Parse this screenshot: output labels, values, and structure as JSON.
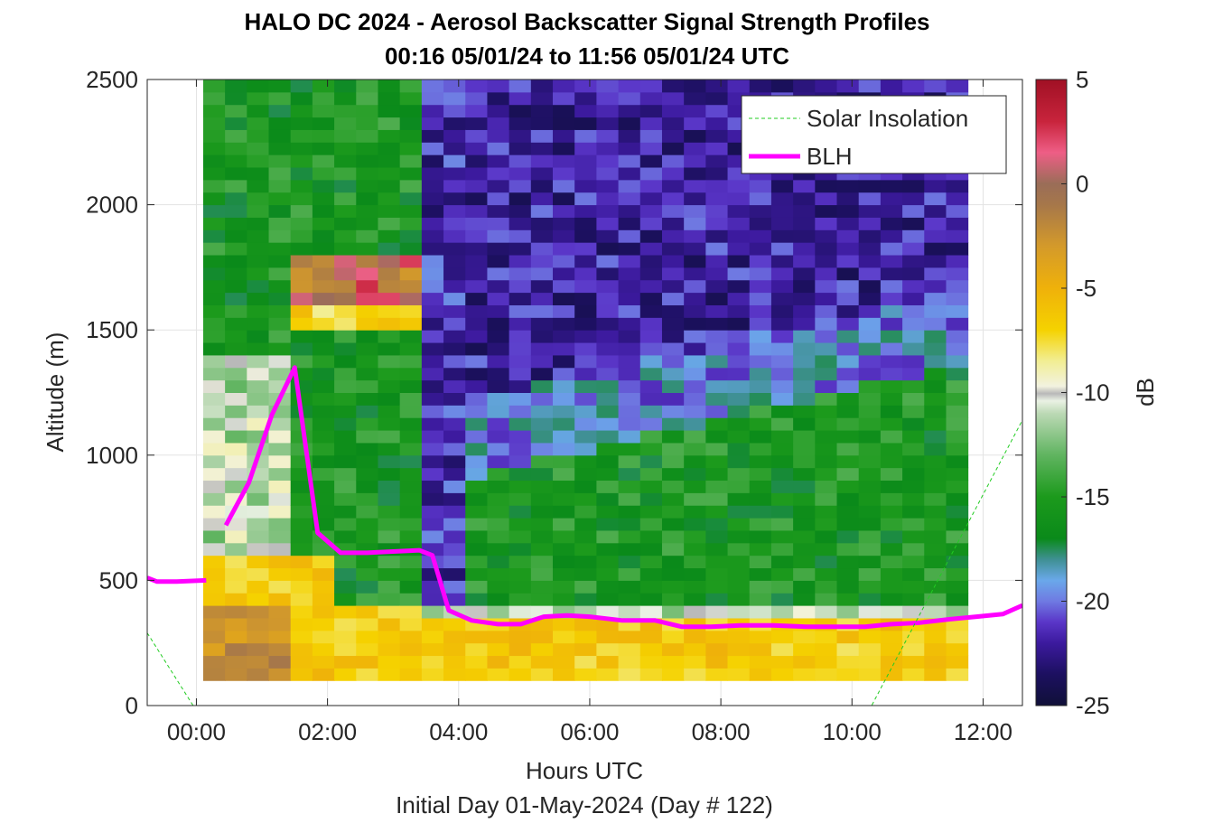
{
  "chart_data": {
    "type": "heatmap",
    "title": "HALO DC 2024 - Aerosol Backscatter Signal Strength Profiles",
    "subtitle": "00:16 05/01/24 to 11:56 05/01/24  UTC",
    "xlabel": "Hours UTC",
    "xlabel2": "Initial Day 01-May-2024 (Day # 122)",
    "ylabel": "Altitude (m)",
    "xlim": [
      -0.75,
      12.6
    ],
    "ylim": [
      0,
      2500
    ],
    "x_ticks": [
      0,
      2,
      4,
      6,
      8,
      10,
      12
    ],
    "x_tick_labels": [
      "00:00",
      "02:00",
      "04:00",
      "06:00",
      "08:00",
      "10:00",
      "12:00"
    ],
    "y_ticks": [
      0,
      500,
      1000,
      1500,
      2000,
      2500
    ],
    "y_tick_labels": [
      "0",
      "500",
      "1000",
      "1500",
      "2000",
      "2500"
    ],
    "grid": true,
    "colorbar": {
      "label": "dB",
      "range": [
        -25,
        5
      ],
      "ticks": [
        -25,
        -20,
        -15,
        -10,
        -5,
        0,
        5
      ],
      "tick_labels": [
        "-25",
        "-20",
        "-15",
        "-10",
        "-5",
        "0",
        "5"
      ]
    },
    "heatmap": {
      "x_start": 0.27,
      "x_step": 0.3333,
      "columns": 35,
      "y_start": 100,
      "y_top": 2500,
      "row_step": 50
    },
    "legend": {
      "placement": "top-right",
      "entries": [
        {
          "label": "Solar Insolation",
          "color": "#22cc22",
          "style": "dashed"
        },
        {
          "label": "BLH",
          "color": "#ff00ff",
          "style": "solid"
        }
      ]
    },
    "series": [
      {
        "name": "BLH",
        "color": "#ff00ff",
        "segments": [
          {
            "x": [
              -0.75,
              -0.6,
              -0.3,
              0.15
            ],
            "y": [
              510,
              495,
              495,
              500
            ]
          },
          {
            "x": [
              0.45,
              0.8,
              1.15,
              1.5,
              1.85,
              2.2,
              2.6,
              3.0,
              3.4,
              3.6,
              3.85,
              4.2,
              4.6,
              4.95,
              5.3,
              5.65,
              6.0,
              6.5,
              7.0,
              7.4,
              7.85,
              8.3,
              8.8,
              9.3,
              9.8,
              10.2,
              10.6,
              11.0,
              11.5,
              11.9,
              12.3,
              12.6
            ],
            "y": [
              720,
              890,
              1160,
              1350,
              690,
              610,
              610,
              615,
              620,
              600,
              380,
              340,
              325,
              325,
              355,
              360,
              355,
              340,
              340,
              315,
              315,
              320,
              320,
              315,
              315,
              315,
              325,
              330,
              345,
              355,
              365,
              400
            ]
          }
        ]
      },
      {
        "name": "Solar Insolation",
        "color": "#22cc22",
        "segments": [
          {
            "x": [
              -0.75,
              -0.05,
              10.3,
              12.6
            ],
            "y": [
              290,
              0,
              0,
              1140
            ]
          }
        ]
      }
    ]
  }
}
